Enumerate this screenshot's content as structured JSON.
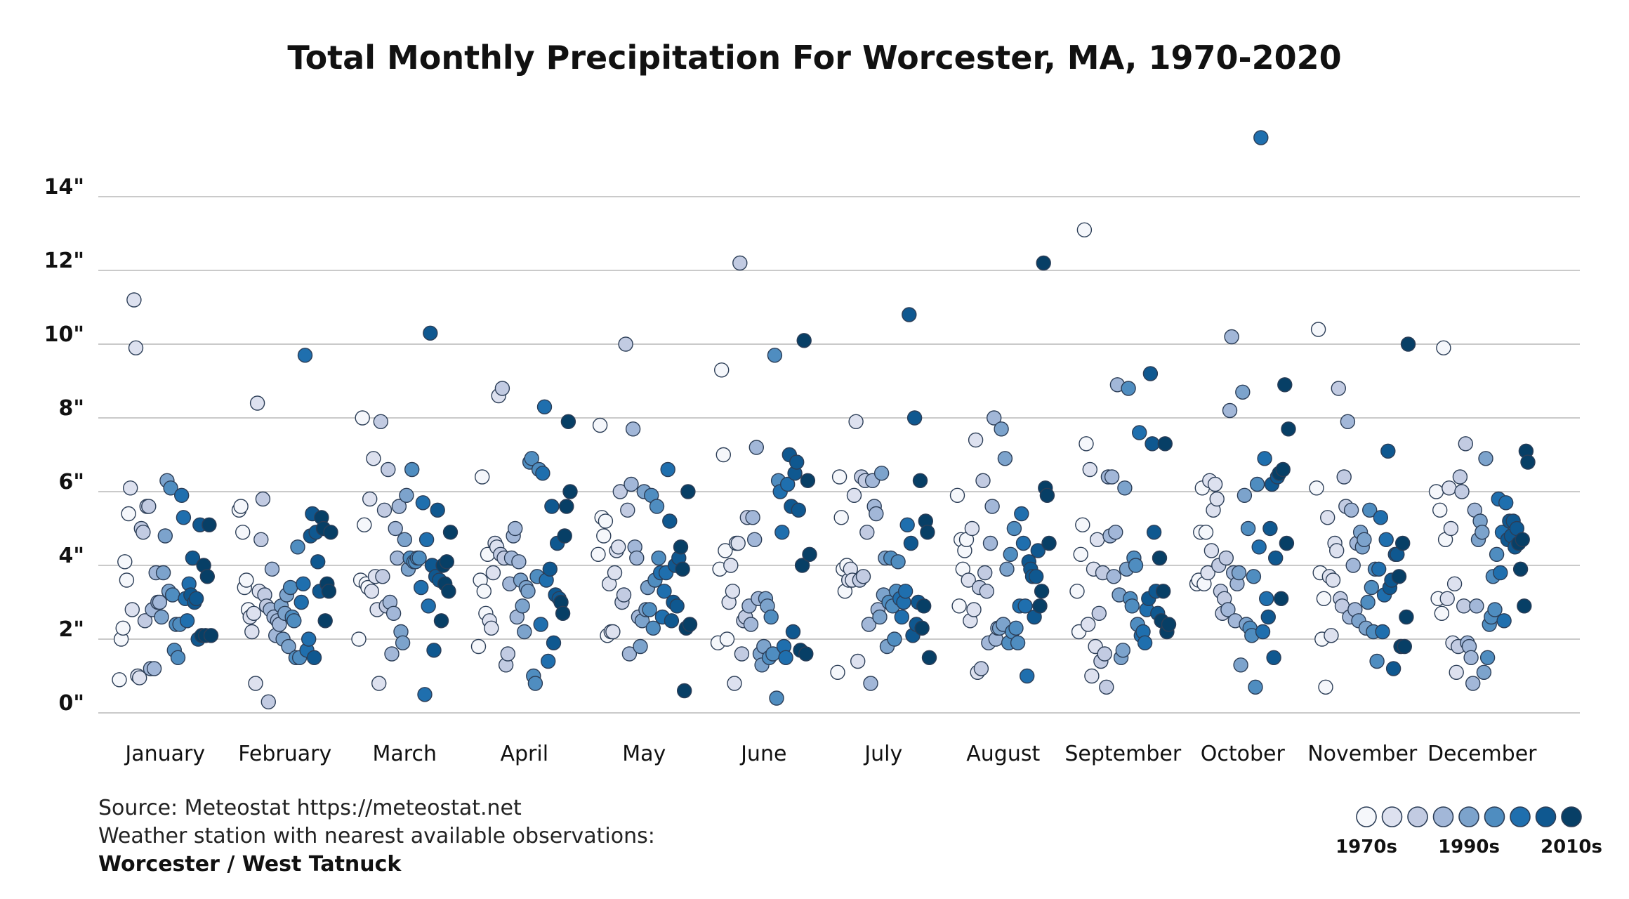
{
  "chart_data": {
    "type": "scatter",
    "title": "Total Monthly Precipitation For Worcester, MA, 1970-2020",
    "xlabel": "",
    "ylabel": "",
    "ylim": [
      0,
      15.5
    ],
    "yticks": [
      0,
      2,
      4,
      6,
      8,
      10,
      12,
      14
    ],
    "ytick_labels": [
      "0\"",
      "2\"",
      "4\"",
      "6\"",
      "8\"",
      "10\"",
      "12\"",
      "14\""
    ],
    "categories": [
      "January",
      "February",
      "March",
      "April",
      "May",
      "June",
      "July",
      "August",
      "September",
      "October",
      "November",
      "December"
    ],
    "decades": [
      "1970s",
      "1980s",
      "1990s",
      "2000s",
      "2010s"
    ],
    "colors": [
      "#f5f7fb",
      "#dde1ef",
      "#c2cbe2",
      "#a2b7d8",
      "#7ca3cc",
      "#4f8dc0",
      "#1f6fae",
      "#0f5890",
      "#073f66"
    ],
    "legend_labels": [
      "1970s",
      "1990s",
      "2010s"
    ],
    "series": [
      {
        "month": "January",
        "values": [
          0.9,
          2.0,
          2.3,
          4.1,
          3.6,
          5.4,
          6.1,
          2.8,
          11.2,
          9.9,
          1.0,
          0.95,
          5.0,
          4.9,
          2.5,
          5.6,
          5.6,
          1.2,
          2.8,
          1.2,
          3.8,
          3.0,
          3.0,
          2.6,
          3.8,
          4.8,
          6.3,
          3.3,
          6.1,
          3.2,
          1.7,
          2.4,
          1.5,
          2.4,
          5.9,
          5.3,
          3.1,
          2.5,
          3.5,
          3.2,
          4.2,
          3.0,
          3.1,
          2.0,
          5.1,
          2.1,
          4.0,
          2.1,
          3.7,
          5.1,
          2.1
        ]
      },
      {
        "month": "February",
        "values": [
          5.5,
          5.6,
          4.9,
          3.4,
          3.6,
          2.8,
          2.6,
          2.2,
          2.7,
          0.8,
          8.4,
          3.3,
          4.7,
          5.8,
          3.2,
          2.9,
          0.3,
          2.8,
          3.9,
          2.6,
          2.1,
          2.5,
          2.4,
          2.9,
          2.0,
          2.7,
          3.2,
          1.8,
          3.4,
          2.6,
          2.5,
          1.5,
          4.5,
          1.5,
          3.0,
          3.5,
          9.7,
          1.7,
          2.0,
          4.8,
          5.4,
          1.5,
          4.9,
          4.1,
          3.3,
          5.3,
          5.0,
          2.5,
          3.5,
          3.3,
          4.9
        ]
      },
      {
        "month": "March",
        "values": [
          2.0,
          3.6,
          8.0,
          5.1,
          3.5,
          3.4,
          5.8,
          3.3,
          6.9,
          3.7,
          2.8,
          0.8,
          7.9,
          3.7,
          5.5,
          2.9,
          6.6,
          3.0,
          1.6,
          2.7,
          5.0,
          4.2,
          5.6,
          2.2,
          1.9,
          4.7,
          5.9,
          3.9,
          4.2,
          6.6,
          4.1,
          4.1,
          4.2,
          4.2,
          3.4,
          5.7,
          0.5,
          4.7,
          2.9,
          10.3,
          4.0,
          1.7,
          3.7,
          5.5,
          3.6,
          2.5,
          4.0,
          3.5,
          4.1,
          3.3,
          4.9
        ]
      },
      {
        "month": "April",
        "values": [
          1.8,
          3.6,
          6.4,
          3.3,
          2.7,
          4.3,
          2.5,
          2.3,
          3.8,
          4.6,
          4.5,
          8.6,
          4.3,
          8.8,
          4.2,
          1.3,
          1.6,
          3.5,
          4.2,
          4.8,
          5.0,
          2.6,
          4.1,
          3.6,
          2.9,
          2.2,
          3.4,
          3.3,
          6.8,
          6.9,
          1.0,
          0.8,
          3.7,
          6.6,
          2.4,
          6.5,
          8.3,
          3.6,
          1.4,
          3.9,
          5.6,
          1.9,
          3.2,
          4.6,
          3.1,
          3.0,
          2.7,
          4.8,
          5.6,
          7.9,
          6.0
        ]
      },
      {
        "month": "May",
        "values": [
          4.3,
          7.8,
          5.3,
          4.8,
          5.2,
          2.1,
          3.5,
          2.2,
          2.2,
          3.8,
          4.4,
          4.5,
          6.0,
          3.0,
          3.2,
          10.0,
          5.5,
          1.6,
          6.2,
          7.7,
          4.5,
          4.2,
          2.6,
          1.8,
          2.5,
          6.0,
          2.8,
          3.4,
          2.8,
          5.9,
          2.3,
          3.6,
          5.6,
          4.2,
          3.8,
          2.6,
          3.3,
          3.8,
          6.6,
          5.2,
          2.5,
          3.0,
          4.0,
          2.9,
          4.2,
          4.5,
          3.9,
          0.6,
          2.3,
          6.0,
          2.4
        ]
      },
      {
        "month": "June",
        "values": [
          1.9,
          3.9,
          9.3,
          7.0,
          4.4,
          2.0,
          3.0,
          4.0,
          3.3,
          0.8,
          4.6,
          4.6,
          12.2,
          1.6,
          2.5,
          2.6,
          5.3,
          2.9,
          2.4,
          5.3,
          4.7,
          7.2,
          3.1,
          1.6,
          1.3,
          1.8,
          3.1,
          2.9,
          1.5,
          2.6,
          1.6,
          9.7,
          0.4,
          6.3,
          6.0,
          4.9,
          1.8,
          1.5,
          6.2,
          7.0,
          5.6,
          2.2,
          6.5,
          6.8,
          5.5,
          1.7,
          4.0,
          10.1,
          1.6,
          6.3,
          4.3
        ]
      },
      {
        "month": "July",
        "values": [
          1.1,
          6.4,
          5.3,
          3.9,
          3.3,
          4.0,
          3.6,
          3.9,
          3.6,
          5.9,
          7.9,
          1.4,
          3.6,
          6.4,
          3.7,
          6.3,
          4.9,
          2.4,
          0.8,
          6.3,
          5.6,
          5.4,
          2.8,
          2.6,
          6.5,
          3.2,
          4.2,
          1.8,
          3.0,
          4.2,
          2.9,
          2.0,
          3.3,
          4.1,
          3.1,
          2.6,
          3.0,
          3.3,
          5.1,
          10.8,
          4.6,
          2.1,
          8.0,
          2.4,
          3.0,
          6.3,
          2.3,
          2.9,
          5.2,
          4.9,
          1.5
        ]
      },
      {
        "month": "August",
        "values": [
          5.9,
          2.9,
          4.7,
          3.9,
          4.4,
          4.7,
          3.6,
          2.5,
          5.0,
          2.8,
          7.4,
          1.1,
          3.4,
          1.2,
          6.3,
          3.8,
          3.3,
          1.9,
          4.6,
          5.6,
          8.0,
          2.0,
          2.3,
          2.3,
          7.7,
          2.4,
          6.9,
          3.9,
          1.9,
          4.3,
          2.2,
          5.0,
          2.3,
          1.9,
          2.9,
          5.4,
          4.6,
          2.9,
          1.0,
          4.1,
          3.9,
          3.7,
          2.6,
          3.7,
          4.4,
          2.9,
          3.3,
          12.2,
          6.1,
          5.9,
          4.6
        ]
      },
      {
        "month": "September",
        "values": [
          3.3,
          2.2,
          4.3,
          5.1,
          13.1,
          7.3,
          2.4,
          6.6,
          1.0,
          3.9,
          1.8,
          4.7,
          2.7,
          1.4,
          3.8,
          1.6,
          0.7,
          6.4,
          4.8,
          6.4,
          3.7,
          4.9,
          8.9,
          3.2,
          1.5,
          1.7,
          6.1,
          3.9,
          8.8,
          3.1,
          2.9,
          4.2,
          4.0,
          2.4,
          7.6,
          2.1,
          2.2,
          1.9,
          2.8,
          3.1,
          9.2,
          7.3,
          4.9,
          3.3,
          2.7,
          4.2,
          2.5,
          3.3,
          7.3,
          2.2,
          2.4
        ]
      },
      {
        "month": "October",
        "values": [
          3.5,
          3.6,
          4.9,
          6.1,
          3.5,
          4.9,
          3.8,
          6.3,
          4.4,
          5.5,
          6.2,
          5.8,
          4.0,
          3.3,
          2.7,
          3.1,
          4.2,
          2.8,
          8.2,
          10.2,
          3.8,
          2.5,
          3.5,
          3.8,
          1.3,
          8.7,
          5.9,
          2.4,
          5.0,
          2.3,
          2.1,
          3.7,
          0.7,
          6.2,
          4.5,
          15.6,
          2.2,
          6.9,
          3.1,
          2.6,
          5.0,
          6.2,
          1.5,
          4.2,
          6.4,
          6.5,
          3.1,
          6.6,
          8.9,
          4.6,
          7.7
        ]
      },
      {
        "month": "November",
        "values": [
          6.1,
          10.4,
          3.8,
          2.0,
          3.1,
          0.7,
          5.3,
          3.7,
          2.1,
          3.6,
          4.6,
          4.4,
          8.8,
          3.1,
          2.9,
          6.4,
          5.6,
          7.9,
          2.6,
          5.5,
          4.0,
          2.8,
          4.6,
          2.5,
          4.9,
          4.5,
          4.7,
          2.3,
          3.0,
          5.5,
          3.4,
          2.2,
          3.9,
          1.4,
          3.9,
          5.3,
          2.2,
          3.2,
          4.7,
          7.1,
          3.4,
          3.6,
          1.2,
          4.3,
          4.3,
          3.7,
          1.8,
          4.6,
          1.8,
          2.6,
          10.0
        ]
      },
      {
        "month": "December",
        "values": [
          6.0,
          3.1,
          5.5,
          2.7,
          9.9,
          4.7,
          3.1,
          6.1,
          5.0,
          1.9,
          3.5,
          1.1,
          1.8,
          6.4,
          6.0,
          2.9,
          7.3,
          1.9,
          1.8,
          1.5,
          0.8,
          5.5,
          2.9,
          4.7,
          5.2,
          4.9,
          1.1,
          6.9,
          1.5,
          2.4,
          2.6,
          3.7,
          2.8,
          4.3,
          5.8,
          3.8,
          4.9,
          2.5,
          5.7,
          4.7,
          5.2,
          4.8,
          5.2,
          4.5,
          5.0,
          4.6,
          3.9,
          4.7,
          2.9,
          7.1,
          6.8
        ]
      }
    ]
  },
  "footer": {
    "source_line": "Source: Meteostat https://meteostat.net",
    "station_line": "Weather station with nearest available observations:",
    "station_name": "Worcester / West Tatnuck"
  }
}
